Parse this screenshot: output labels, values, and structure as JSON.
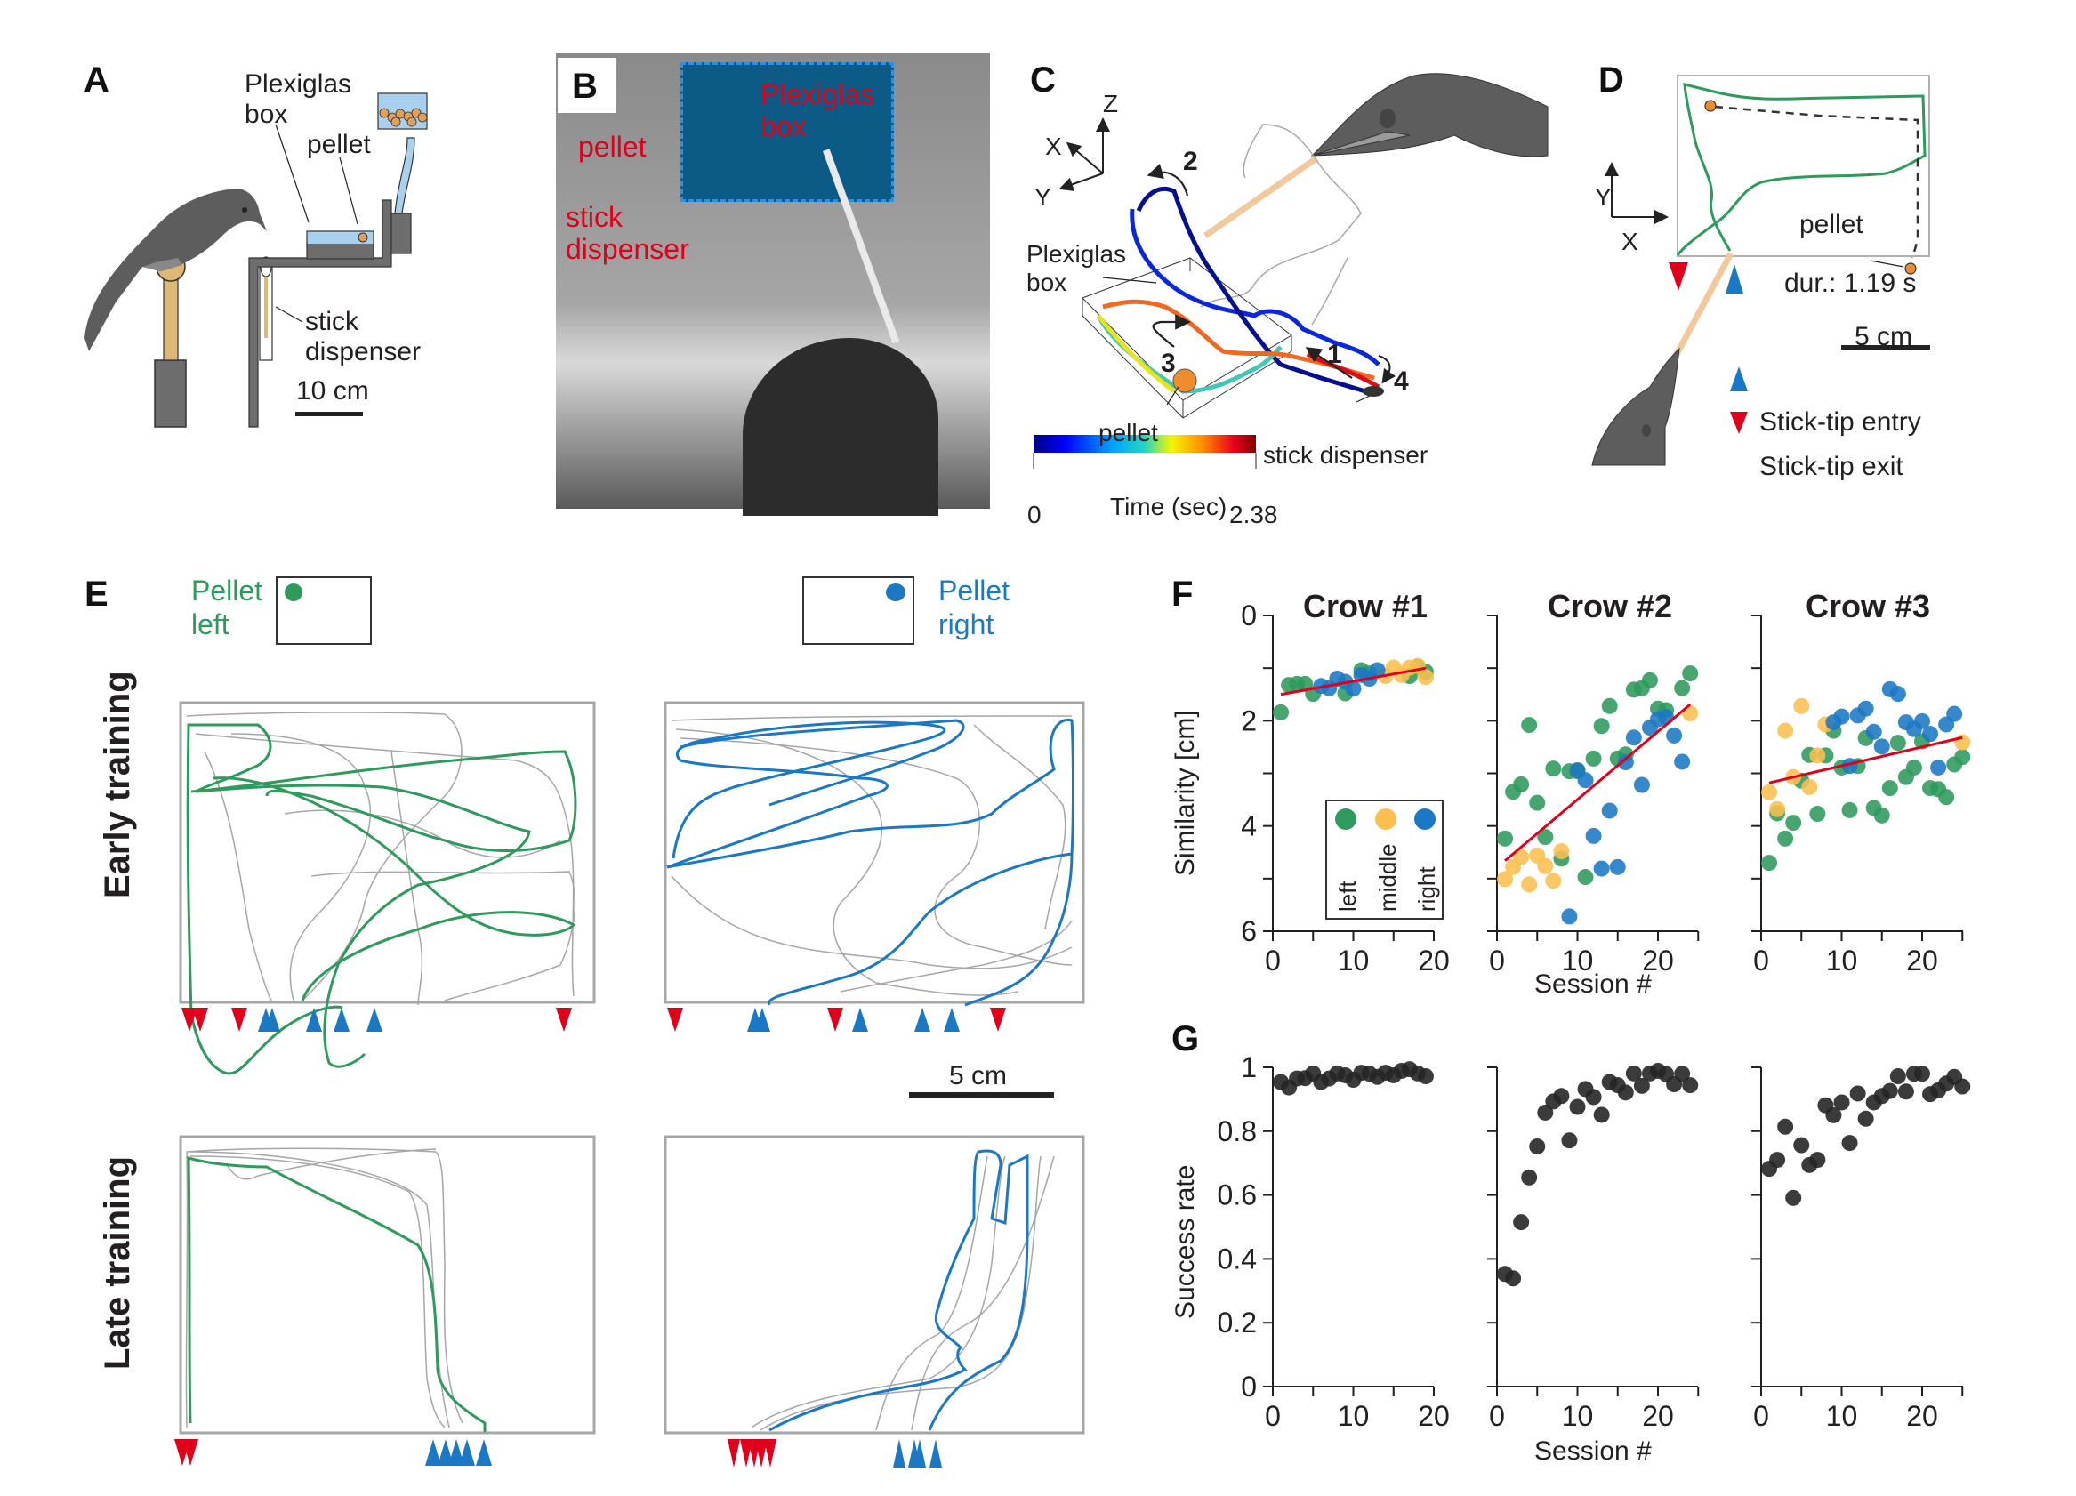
{
  "figure": {
    "panels": {
      "A": {
        "label": "A",
        "annotations": {
          "box": "Plexiglas\nbox",
          "box_line1": "Plexiglas",
          "box_line2": "box",
          "pellet": "pellet",
          "dispenser_line1": "stick",
          "dispenser_line2": "dispenser",
          "scale": "10 cm"
        }
      },
      "B": {
        "label": "B",
        "annotations": {
          "pellet": "pellet",
          "box_line1": "Plexiglas",
          "box_line2": "box",
          "dispenser_line1": "stick",
          "dispenser_line2": "dispenser"
        }
      },
      "C": {
        "label": "C",
        "axes": {
          "x": "X",
          "y": "Y",
          "z": "Z"
        },
        "annotations": {
          "box_line1": "Plexiglas",
          "box_line2": "box",
          "pellet": "pellet",
          "dispenser": "stick dispenser",
          "steps": [
            "1",
            "2",
            "3",
            "4"
          ]
        },
        "colorbar": {
          "min": "0",
          "max": "2.38",
          "label": "Time (sec)",
          "colormap": [
            "#00007f",
            "#0000ff",
            "#00a0ff",
            "#2ad4c0",
            "#f5f500",
            "#ff8c00",
            "#e8001c",
            "#7f0000"
          ]
        }
      },
      "D": {
        "label": "D",
        "axes": {
          "x": "X",
          "y": "Y"
        },
        "pellet": "pellet",
        "duration": "dur.: 1.19 s",
        "scale": "5 cm",
        "legend": [
          {
            "label": "Stick-tip entry",
            "marker": "triangle-up",
            "color": "#0071c5"
          },
          {
            "label": "Stick-tip exit",
            "marker": "triangle-down",
            "color": "#e0001b"
          }
        ]
      },
      "E": {
        "label": "E",
        "pellet_left_line1": "Pellet",
        "pellet_left_line2": "left",
        "pellet_right_line1": "Pellet",
        "pellet_right_line2": "right",
        "row_early": "Early training",
        "row_late": "Late training",
        "scale": "5 cm",
        "colors": {
          "left": "#2e9a5c",
          "right": "#1b78c4",
          "other": "#a6a6a6",
          "entry": "#0071c5",
          "exit": "#e0001b"
        }
      }
    }
  },
  "chart_data": [
    {
      "type": "scatter",
      "panel": "F",
      "title": "Crow #1",
      "xlabel": "",
      "ylabel": "Similarity [cm]",
      "xlim": [
        0,
        20
      ],
      "ylim": [
        6,
        0
      ],
      "yticks": [
        "0",
        "2",
        "4",
        "6"
      ],
      "xticks": [
        "0",
        "10",
        "20"
      ],
      "legend": {
        "entries": [
          "left",
          "middle",
          "right"
        ],
        "placement": "lower-right"
      },
      "series": [
        {
          "name": "left",
          "color": "#2e9a5c",
          "x": [
            1,
            2,
            3,
            4,
            5,
            9,
            11,
            12,
            17,
            18,
            19
          ],
          "y": [
            1.84,
            1.32,
            1.3,
            1.3,
            1.49,
            1.48,
            1.04,
            1.1,
            1.15,
            0.97,
            1.07
          ]
        },
        {
          "name": "middle",
          "color": "#fbbf4f",
          "x": [
            14,
            15,
            16,
            17,
            18,
            19
          ],
          "y": [
            1.15,
            0.99,
            1.13,
            0.99,
            0.96,
            1.17
          ]
        },
        {
          "name": "right",
          "color": "#1b78c4",
          "x": [
            6,
            7,
            8,
            9,
            10,
            11,
            12,
            13
          ],
          "y": [
            1.34,
            1.38,
            1.2,
            1.26,
            1.39,
            1.13,
            1.2,
            1.04
          ]
        }
      ],
      "fit": {
        "color": "#e0001b",
        "x": [
          1,
          19
        ],
        "y": [
          1.5,
          1.0
        ]
      }
    },
    {
      "type": "scatter",
      "panel": "F",
      "title": "Crow #2",
      "xlabel": "Session #",
      "ylabel": "",
      "xlim": [
        0,
        25
      ],
      "ylim": [
        6,
        0
      ],
      "xticks": [
        "0",
        "10",
        "20"
      ],
      "series": [
        {
          "name": "left",
          "color": "#2e9a5c",
          "x": [
            1,
            2,
            3,
            4,
            5,
            6,
            7,
            8,
            9,
            10,
            11,
            12,
            13,
            14,
            15,
            16,
            17,
            18,
            19,
            20,
            21,
            23,
            24
          ],
          "y": [
            4.24,
            3.35,
            3.21,
            2.08,
            3.56,
            4.21,
            2.91,
            4.62,
            2.96,
            2.96,
            4.97,
            2.72,
            2.1,
            1.72,
            2.72,
            2.64,
            1.41,
            1.38,
            1.23,
            1.77,
            1.8,
            1.38,
            1.1
          ]
        },
        {
          "name": "middle",
          "color": "#fbbf4f",
          "x": [
            1,
            2,
            3,
            4,
            5,
            6,
            7,
            8,
            24
          ],
          "y": [
            5.01,
            4.78,
            4.59,
            5.11,
            4.56,
            4.76,
            5.04,
            4.48,
            1.86
          ]
        },
        {
          "name": "right",
          "color": "#1b78c4",
          "x": [
            9,
            10,
            11,
            12,
            13,
            14,
            15,
            16,
            17,
            18,
            19,
            20,
            21,
            22,
            23
          ],
          "y": [
            5.72,
            2.94,
            3.13,
            4.19,
            4.81,
            3.71,
            4.78,
            2.79,
            2.32,
            3.22,
            2.13,
            1.97,
            1.93,
            2.28,
            2.78
          ]
        }
      ],
      "fit": {
        "color": "#e0001b",
        "x": [
          1,
          24
        ],
        "y": [
          4.66,
          1.69
        ]
      }
    },
    {
      "type": "scatter",
      "panel": "F",
      "title": "Crow #3",
      "xlabel": "",
      "ylabel": "",
      "xlim": [
        0,
        25
      ],
      "ylim": [
        6,
        0
      ],
      "xticks": [
        "0",
        "10",
        "20"
      ],
      "series": [
        {
          "name": "left",
          "color": "#2e9a5c",
          "x": [
            1,
            2,
            3,
            4,
            5,
            6,
            7,
            8,
            9,
            10,
            11,
            12,
            13,
            14,
            15,
            16,
            17,
            18,
            19,
            20,
            21,
            22,
            23,
            24,
            25
          ],
          "y": [
            4.7,
            3.76,
            4.24,
            3.94,
            3.14,
            2.65,
            3.77,
            2.66,
            2.19,
            2.89,
            3.7,
            2.86,
            2.33,
            3.66,
            3.8,
            3.28,
            2.42,
            3.07,
            2.89,
            2.39,
            3.28,
            3.3,
            3.45,
            2.83,
            2.69
          ]
        },
        {
          "name": "middle",
          "color": "#fbbf4f",
          "x": [
            1,
            2,
            3,
            4,
            5,
            6,
            7,
            8,
            25
          ],
          "y": [
            3.36,
            3.68,
            2.19,
            3.07,
            1.72,
            3.26,
            2.66,
            2.07,
            2.41
          ]
        },
        {
          "name": "right",
          "color": "#1b78c4",
          "x": [
            9,
            10,
            11,
            12,
            13,
            14,
            15,
            16,
            17,
            18,
            19,
            20,
            21,
            22,
            23,
            24
          ],
          "y": [
            2.03,
            1.92,
            2.86,
            1.9,
            1.77,
            2.21,
            2.49,
            1.4,
            1.49,
            2.03,
            2.16,
            2.01,
            2.25,
            2.89,
            2.07,
            1.87
          ]
        }
      ],
      "fit": {
        "color": "#e0001b",
        "x": [
          1,
          25
        ],
        "y": [
          3.18,
          2.32
        ]
      }
    },
    {
      "type": "scatter",
      "panel": "G",
      "title": "",
      "xlabel": "",
      "ylabel": "Success rate",
      "xlim": [
        0,
        20
      ],
      "ylim": [
        0,
        1
      ],
      "yticks": [
        "0",
        "0.2",
        "0.4",
        "0.6",
        "0.8",
        "1"
      ],
      "xticks": [
        "0",
        "10",
        "20"
      ],
      "series": [
        {
          "name": "Crow #1",
          "color": "#262626",
          "x": [
            1,
            2,
            3,
            4,
            5,
            6,
            7,
            8,
            9,
            10,
            11,
            12,
            13,
            14,
            15,
            16,
            17,
            18,
            19
          ],
          "y": [
            0.954,
            0.937,
            0.965,
            0.966,
            0.981,
            0.954,
            0.965,
            0.981,
            0.975,
            0.961,
            0.983,
            0.98,
            0.97,
            0.983,
            0.975,
            0.989,
            0.994,
            0.981,
            0.972
          ]
        }
      ]
    },
    {
      "type": "scatter",
      "panel": "G",
      "title": "",
      "xlabel": "Session #",
      "ylabel": "",
      "xlim": [
        0,
        25
      ],
      "ylim": [
        0,
        1
      ],
      "xticks": [
        "0",
        "10",
        "20"
      ],
      "series": [
        {
          "name": "Crow #2",
          "color": "#262626",
          "x": [
            1,
            2,
            3,
            4,
            5,
            6,
            7,
            8,
            9,
            10,
            11,
            12,
            13,
            14,
            15,
            16,
            17,
            18,
            19,
            20,
            21,
            22,
            23,
            24
          ],
          "y": [
            0.353,
            0.339,
            0.515,
            0.655,
            0.752,
            0.858,
            0.893,
            0.91,
            0.771,
            0.876,
            0.932,
            0.907,
            0.851,
            0.954,
            0.944,
            0.921,
            0.981,
            0.942,
            0.981,
            0.989,
            0.979,
            0.947,
            0.98,
            0.944
          ]
        }
      ]
    },
    {
      "type": "scatter",
      "panel": "G",
      "title": "",
      "xlabel": "",
      "ylabel": "",
      "xlim": [
        0,
        25
      ],
      "ylim": [
        0,
        1
      ],
      "xticks": [
        "0",
        "10",
        "20"
      ],
      "series": [
        {
          "name": "Crow #3",
          "color": "#262626",
          "x": [
            1,
            2,
            3,
            4,
            5,
            6,
            7,
            8,
            9,
            10,
            11,
            12,
            13,
            14,
            15,
            16,
            17,
            18,
            19,
            20,
            21,
            22,
            23,
            24,
            25
          ],
          "y": [
            0.682,
            0.71,
            0.814,
            0.591,
            0.756,
            0.694,
            0.71,
            0.881,
            0.85,
            0.89,
            0.763,
            0.918,
            0.839,
            0.89,
            0.91,
            0.926,
            0.972,
            0.924,
            0.98,
            0.98,
            0.916,
            0.928,
            0.949,
            0.97,
            0.94
          ]
        }
      ]
    }
  ],
  "panel_labels": {
    "F": "F",
    "G": "G"
  }
}
